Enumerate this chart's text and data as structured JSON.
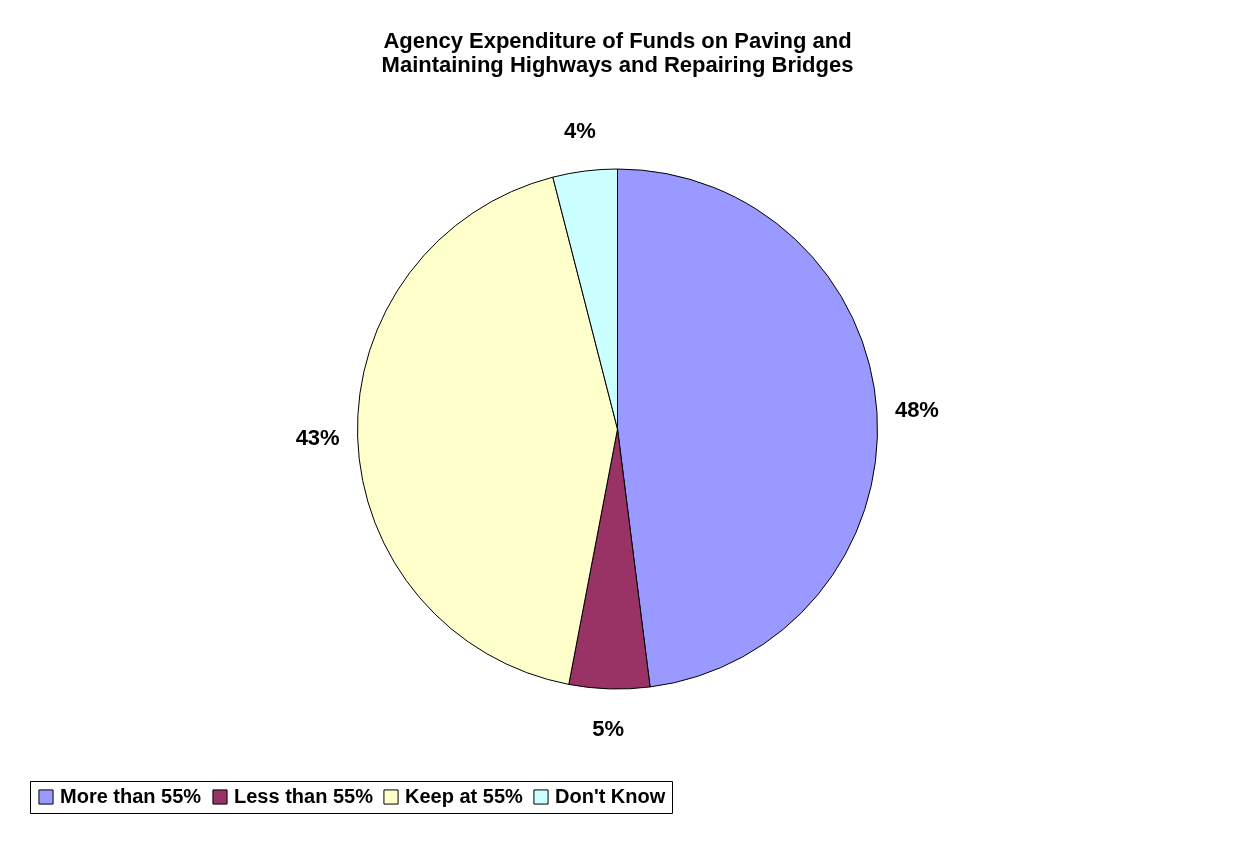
{
  "chart_data": {
    "type": "pie",
    "title": "Agency Expenditure of Funds on Paving and\nMaintaining Highways and Repairing Bridges",
    "categories": [
      "More than 55%",
      "Less than 55%",
      "Keep at 55%",
      "Don't Know"
    ],
    "values": [
      48,
      5,
      43,
      4
    ],
    "colors": [
      "#9999ff",
      "#993366",
      "#ffffcc",
      "#ccffff"
    ],
    "value_labels": [
      "48%",
      "5%",
      "43%",
      "4%"
    ],
    "legend": "bottom"
  }
}
